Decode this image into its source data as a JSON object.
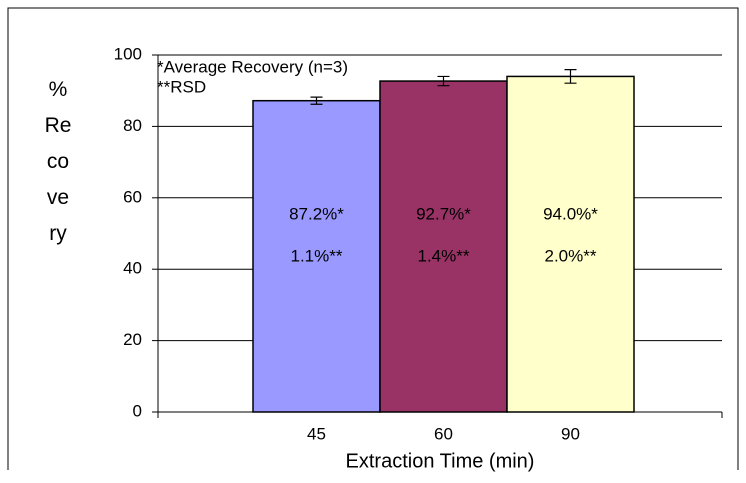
{
  "chart_data": {
    "type": "bar",
    "y_label": "%Recovery",
    "x_label": "Extraction Time (min)",
    "annotations": [
      "*Average Recovery (n=3)",
      "**RSD"
    ],
    "categories": [
      "45",
      "60",
      "90"
    ],
    "values": [
      87.2,
      92.7,
      94.0
    ],
    "value_labels": [
      "87.2%*",
      "92.7%*",
      "94.0%*"
    ],
    "rsd_labels": [
      "1.1%**",
      "1.4%**",
      "2.0%**"
    ],
    "errors": [
      1.0,
      1.3,
      1.9
    ],
    "colors": [
      "#9999ff",
      "#993366",
      "#ffffcc"
    ],
    "ylim": [
      0,
      100
    ],
    "yticks": [
      0,
      20,
      40,
      60,
      80,
      100
    ],
    "grid": true
  }
}
